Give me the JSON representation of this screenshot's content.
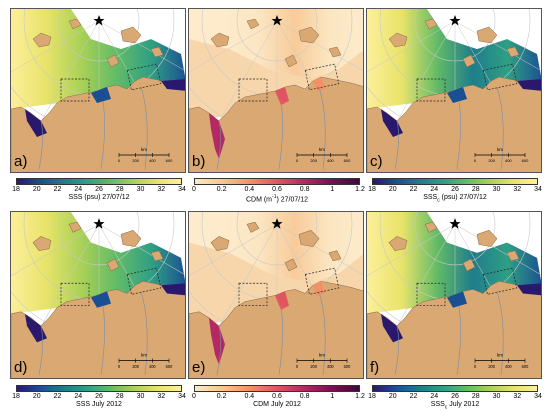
{
  "colors": {
    "land": "#d9a873",
    "water_low": "#2d1a6e",
    "water_mid": "#2d9f8a",
    "water_high": "#f7ef8a",
    "cdm_low": "#fbe7c3",
    "cdm_high": "#6a0f3c",
    "grid": "#c8c8c8"
  },
  "panels": [
    {
      "letter": "a)",
      "variable": "SSS",
      "colorbar_label": "SSS (psu) 27/07/12",
      "colormap": "haline",
      "ticks": [
        "18",
        "20",
        "22",
        "24",
        "26",
        "28",
        "30",
        "32",
        "34"
      ],
      "scale_label": "km",
      "scale_ticks": [
        "0",
        "200",
        "400",
        "600"
      ]
    },
    {
      "letter": "b)",
      "variable": "CDM",
      "colorbar_label_main": "CDM (m",
      "colorbar_label_sup": "-1",
      "colorbar_label_tail": ") 27/07/12",
      "colormap": "cdm",
      "ticks": [
        "0",
        "0.2",
        "0.4",
        "0.6",
        "0.8",
        "1",
        "1.2"
      ],
      "scale_label": "km",
      "scale_ticks": [
        "0",
        "200",
        "400",
        "600"
      ]
    },
    {
      "letter": "c)",
      "variable": "SSSc",
      "colorbar_label_main": "SSS",
      "colorbar_label_sub": "c",
      "colorbar_label_tail": " (psu) 27/07/12",
      "colormap": "haline",
      "ticks": [
        "18",
        "20",
        "22",
        "24",
        "26",
        "28",
        "30",
        "32",
        "34"
      ],
      "scale_label": "km",
      "scale_ticks": [
        "0",
        "200",
        "400",
        "600"
      ]
    },
    {
      "letter": "d)",
      "variable": "SSS",
      "colorbar_label": "SSS July 2012",
      "colormap": "haline",
      "ticks": [
        "18",
        "20",
        "22",
        "24",
        "26",
        "28",
        "30",
        "32",
        "34"
      ],
      "scale_label": "km",
      "scale_ticks": [
        "0",
        "200",
        "400",
        "600"
      ]
    },
    {
      "letter": "e)",
      "variable": "CDM",
      "colorbar_label": "CDM July 2012",
      "colormap": "cdm",
      "ticks": [
        "0",
        "0.2",
        "0.4",
        "0.6",
        "0.8",
        "1",
        "1.2"
      ],
      "scale_label": "km",
      "scale_ticks": [
        "0",
        "200",
        "400",
        "600"
      ]
    },
    {
      "letter": "f)",
      "variable": "SSSc",
      "colorbar_label_main": "SSS",
      "colorbar_label_sub": "c",
      "colorbar_label_tail": " July 2012",
      "colormap": "haline",
      "ticks": [
        "18",
        "20",
        "22",
        "24",
        "26",
        "28",
        "30",
        "32",
        "34"
      ],
      "scale_label": "km",
      "scale_ticks": [
        "0",
        "200",
        "400",
        "600"
      ]
    }
  ]
}
